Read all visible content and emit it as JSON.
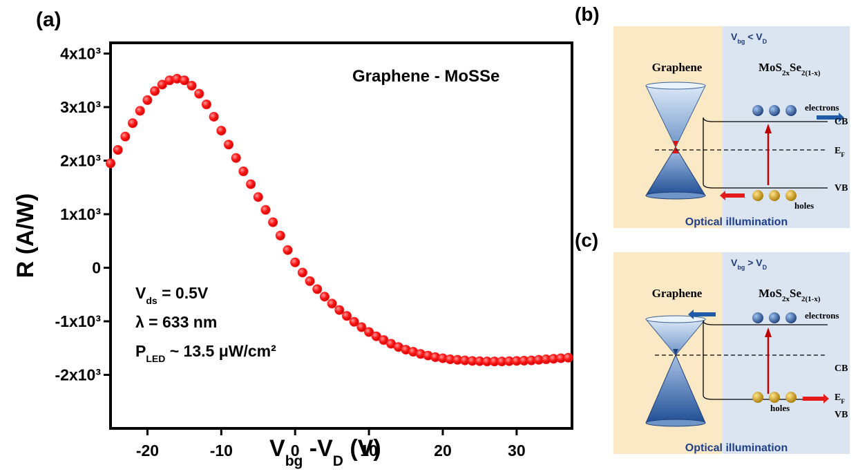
{
  "chart_data": {
    "type": "scatter",
    "color": "#ff1a1a",
    "title": "Graphene - MoSSe",
    "panel_label": "(a)",
    "x_label": [
      "V",
      "bg",
      " -V",
      "D",
      " (V)"
    ],
    "y_label": "R (A/W)",
    "annotations": [
      [
        "V",
        "ds",
        " = 0.5V"
      ],
      [
        "λ = 633 nm"
      ],
      [
        "P",
        "LED",
        " ~ 13.5 μW/cm²"
      ]
    ],
    "xlim": [
      -25,
      37.5
    ],
    "xticks": [
      -20,
      -10,
      0,
      10,
      20,
      30
    ],
    "ylim": [
      -3000,
      4200
    ],
    "yticks": [
      {
        "value": -2000,
        "label": "-2x10³"
      },
      {
        "value": -1000,
        "label": "-1x10³"
      },
      0,
      {
        "value": 1000,
        "label": "1x10³"
      },
      {
        "value": 2000,
        "label": "2x10³"
      },
      {
        "value": 3000,
        "label": "3x10³"
      },
      {
        "value": 4000,
        "label": "4x10³"
      }
    ],
    "x": [
      -25,
      -24,
      -23,
      -22,
      -21,
      -20,
      -19,
      -18,
      -17,
      -16,
      -15,
      -14,
      -13,
      -12,
      -11,
      -10,
      -9,
      -8,
      -7,
      -6,
      -5,
      -4,
      -3,
      -2,
      -1,
      0,
      1,
      2,
      3,
      4,
      5,
      6,
      7,
      8,
      9,
      10,
      11,
      12,
      13,
      14,
      15,
      16,
      17,
      18,
      19,
      20,
      21,
      22,
      23,
      24,
      25,
      26,
      27,
      28,
      29,
      30,
      31,
      32,
      33,
      34,
      35,
      36,
      37
    ],
    "values": [
      1950,
      2200,
      2450,
      2700,
      2930,
      3130,
      3300,
      3420,
      3500,
      3530,
      3500,
      3400,
      3250,
      3050,
      2820,
      2560,
      2300,
      2050,
      1800,
      1560,
      1320,
      1080,
      850,
      600,
      330,
      100,
      -90,
      -250,
      -400,
      -540,
      -670,
      -790,
      -900,
      -1010,
      -1110,
      -1200,
      -1280,
      -1350,
      -1420,
      -1480,
      -1530,
      -1570,
      -1610,
      -1640,
      -1670,
      -1690,
      -1710,
      -1720,
      -1730,
      -1740,
      -1745,
      -1750,
      -1750,
      -1750,
      -1745,
      -1740,
      -1735,
      -1730,
      -1720,
      -1710,
      -1700,
      -1690,
      -1680
    ]
  },
  "panels": [
    {
      "label": "(b)",
      "condition": [
        "V",
        "bg",
        " < V",
        "D"
      ],
      "left_title": "Graphene",
      "right_title": [
        "MoS",
        "2x",
        "Se",
        "2(1-x)"
      ],
      "electrons": "electrons",
      "cb": "CB",
      "ef": [
        "E",
        "F"
      ],
      "vb": "VB",
      "holes": "holes",
      "footer": "Optical illumination"
    },
    {
      "label": "(c)",
      "condition": [
        "V",
        "bg",
        " > V",
        "D"
      ],
      "left_title": "Graphene",
      "right_title": [
        "MoS",
        "2x",
        "Se",
        "2(1-x)"
      ],
      "electrons": "electrons",
      "cb": "CB",
      "ef": [
        "E",
        "F"
      ],
      "vb": "VB",
      "holes": "holes",
      "footer": "Optical illumination"
    }
  ]
}
